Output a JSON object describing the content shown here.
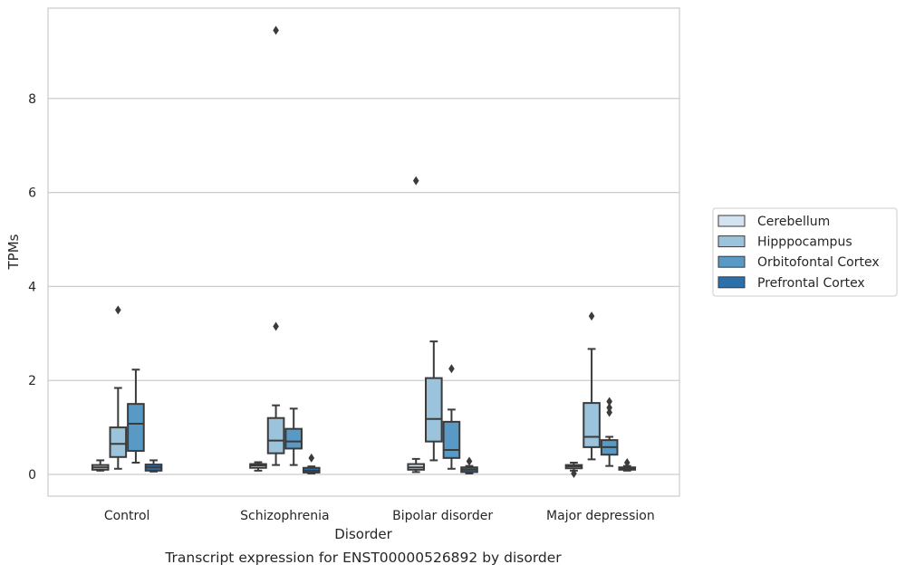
{
  "chart_data": {
    "type": "box",
    "caption": "Transcript expression for ENST00000526892 by disorder",
    "xlabel": "Disorder",
    "ylabel": "TPMs",
    "ylim": [
      -0.45,
      9.8
    ],
    "yticks": [
      0,
      2,
      4,
      6,
      8
    ],
    "grid": true,
    "legend_position": "right",
    "categories": [
      "Control",
      "Schizophrenia",
      "Bipolar disorder",
      "Major depression"
    ],
    "series": [
      {
        "name": "Cerebellum",
        "color": "#d3e3f1",
        "boxes": [
          {
            "whisker_low": 0.08,
            "q1": 0.1,
            "median": 0.15,
            "q3": 0.2,
            "whisker_high": 0.3,
            "outliers": []
          },
          {
            "whisker_low": 0.08,
            "q1": 0.14,
            "median": 0.19,
            "q3": 0.22,
            "whisker_high": 0.26,
            "outliers": []
          },
          {
            "whisker_low": 0.05,
            "q1": 0.1,
            "median": 0.15,
            "q3": 0.22,
            "whisker_high": 0.33,
            "outliers": [
              6.25
            ]
          },
          {
            "whisker_low": 0.08,
            "q1": 0.13,
            "median": 0.17,
            "q3": 0.2,
            "whisker_high": 0.25,
            "outliers": [
              0.02
            ]
          }
        ]
      },
      {
        "name": "Hipppocampus",
        "color": "#9bc3db",
        "boxes": [
          {
            "whisker_low": 0.12,
            "q1": 0.37,
            "median": 0.65,
            "q3": 1.0,
            "whisker_high": 1.84,
            "outliers": [
              3.5
            ]
          },
          {
            "whisker_low": 0.2,
            "q1": 0.45,
            "median": 0.72,
            "q3": 1.2,
            "whisker_high": 1.47,
            "outliers": [
              3.15,
              9.45
            ]
          },
          {
            "whisker_low": 0.3,
            "q1": 0.7,
            "median": 1.18,
            "q3": 2.05,
            "whisker_high": 2.83,
            "outliers": []
          },
          {
            "whisker_low": 0.32,
            "q1": 0.58,
            "median": 0.8,
            "q3": 1.52,
            "whisker_high": 2.67,
            "outliers": [
              3.37
            ]
          }
        ]
      },
      {
        "name": "Orbitofontal Cortex",
        "color": "#5899c6",
        "boxes": [
          {
            "whisker_low": 0.25,
            "q1": 0.5,
            "median": 1.08,
            "q3": 1.5,
            "whisker_high": 2.23,
            "outliers": []
          },
          {
            "whisker_low": 0.2,
            "q1": 0.55,
            "median": 0.7,
            "q3": 0.97,
            "whisker_high": 1.4,
            "outliers": []
          },
          {
            "whisker_low": 0.12,
            "q1": 0.35,
            "median": 0.52,
            "q3": 1.12,
            "whisker_high": 1.38,
            "outliers": [
              2.25
            ]
          },
          {
            "whisker_low": 0.18,
            "q1": 0.42,
            "median": 0.58,
            "q3": 0.73,
            "whisker_high": 0.8,
            "outliers": [
              1.32,
              1.42,
              1.55
            ]
          }
        ]
      },
      {
        "name": "Prefrontal Cortex",
        "color": "#2d6fa8",
        "boxes": [
          {
            "whisker_low": 0.06,
            "q1": 0.08,
            "median": 0.15,
            "q3": 0.21,
            "whisker_high": 0.3,
            "outliers": []
          },
          {
            "whisker_low": 0.02,
            "q1": 0.04,
            "median": 0.08,
            "q3": 0.14,
            "whisker_high": 0.17,
            "outliers": [
              0.35
            ]
          },
          {
            "whisker_low": 0.02,
            "q1": 0.05,
            "median": 0.1,
            "q3": 0.15,
            "whisker_high": 0.18,
            "outliers": [
              0.28
            ]
          },
          {
            "whisker_low": 0.08,
            "q1": 0.1,
            "median": 0.13,
            "q3": 0.15,
            "whisker_high": 0.18,
            "outliers": [
              0.25
            ]
          }
        ]
      }
    ]
  }
}
